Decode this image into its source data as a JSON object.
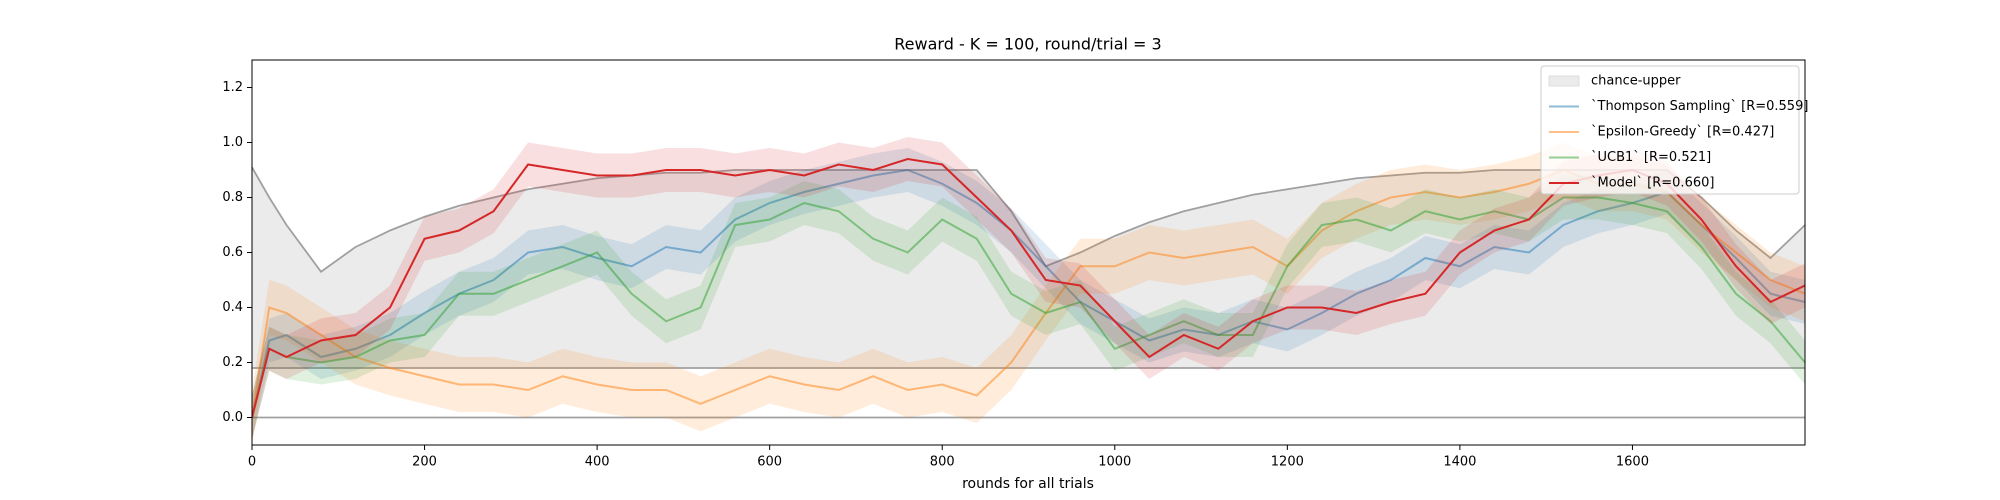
{
  "chart_data": {
    "type": "line",
    "title": "Reward - K = 100, round/trial = 3",
    "xlabel": "rounds for all trials",
    "xlim": [
      0,
      1800
    ],
    "ylim": [
      -0.1,
      1.3
    ],
    "xticks": [
      0,
      200,
      400,
      600,
      800,
      1000,
      1200,
      1400,
      1600
    ],
    "yticks": [
      {
        "value": 0,
        "label": "0.0"
      },
      {
        "value": 0.2,
        "label": "0.2"
      },
      {
        "value": 0.4,
        "label": "0.4"
      },
      {
        "value": 0.6,
        "label": "0.6"
      },
      {
        "value": 0.8,
        "label": "0.8"
      },
      {
        "value": 1.0,
        "label": "1.0"
      },
      {
        "value": 1.2,
        "label": "1.2"
      }
    ],
    "legend": "upper right",
    "hline": 0,
    "x": [
      0,
      20,
      40,
      80,
      120,
      160,
      200,
      240,
      280,
      320,
      360,
      400,
      440,
      480,
      520,
      560,
      600,
      640,
      680,
      720,
      760,
      800,
      840,
      880,
      920,
      960,
      1000,
      1040,
      1080,
      1120,
      1160,
      1200,
      1240,
      1280,
      1320,
      1360,
      1400,
      1440,
      1480,
      1520,
      1560,
      1600,
      1640,
      1680,
      1720,
      1760,
      1800
    ],
    "chance": {
      "name": "chance-upper",
      "color": "#ebebeb",
      "line_color": "#a0a0a0",
      "lower": 0.18,
      "upper": [
        0.91,
        0.8,
        0.7,
        0.53,
        0.62,
        0.68,
        0.73,
        0.77,
        0.8,
        0.83,
        0.85,
        0.87,
        0.88,
        0.89,
        0.89,
        0.9,
        0.9,
        0.9,
        0.9,
        0.9,
        0.9,
        0.9,
        0.9,
        0.75,
        0.55,
        0.6,
        0.66,
        0.71,
        0.75,
        0.78,
        0.81,
        0.83,
        0.85,
        0.87,
        0.88,
        0.89,
        0.89,
        0.9,
        0.9,
        0.9,
        0.9,
        0.9,
        0.9,
        0.8,
        0.68,
        0.58,
        0.7
      ]
    },
    "series": [
      {
        "name": "`Thompson Sampling` [R=0.559]",
        "color": "#1f77b4",
        "alpha": 0.5,
        "band": 0.08,
        "values": [
          0,
          0.28,
          0.3,
          0.22,
          0.25,
          0.3,
          0.38,
          0.45,
          0.5,
          0.6,
          0.62,
          0.58,
          0.55,
          0.62,
          0.6,
          0.72,
          0.78,
          0.82,
          0.85,
          0.88,
          0.9,
          0.85,
          0.78,
          0.68,
          0.55,
          0.42,
          0.35,
          0.28,
          0.32,
          0.3,
          0.35,
          0.32,
          0.38,
          0.45,
          0.5,
          0.58,
          0.55,
          0.62,
          0.6,
          0.7,
          0.75,
          0.78,
          0.82,
          0.7,
          0.58,
          0.45,
          0.42
        ]
      },
      {
        "name": "`Epsilon-Greedy` [R=0.427]",
        "color": "#ff7f0e",
        "alpha": 0.5,
        "band": 0.1,
        "values": [
          0,
          0.4,
          0.38,
          0.3,
          0.22,
          0.18,
          0.15,
          0.12,
          0.12,
          0.1,
          0.15,
          0.12,
          0.1,
          0.1,
          0.05,
          0.1,
          0.15,
          0.12,
          0.1,
          0.15,
          0.1,
          0.12,
          0.08,
          0.2,
          0.38,
          0.55,
          0.55,
          0.6,
          0.58,
          0.6,
          0.62,
          0.55,
          0.68,
          0.75,
          0.8,
          0.82,
          0.8,
          0.82,
          0.85,
          0.9,
          0.85,
          0.85,
          0.82,
          0.7,
          0.6,
          0.5,
          0.45
        ]
      },
      {
        "name": "`UCB1` [R=0.521]",
        "color": "#2ca02c",
        "alpha": 0.5,
        "band": 0.08,
        "values": [
          0,
          0.25,
          0.22,
          0.2,
          0.22,
          0.28,
          0.3,
          0.45,
          0.45,
          0.5,
          0.55,
          0.6,
          0.45,
          0.35,
          0.4,
          0.7,
          0.72,
          0.78,
          0.75,
          0.65,
          0.6,
          0.72,
          0.65,
          0.45,
          0.38,
          0.42,
          0.25,
          0.3,
          0.35,
          0.3,
          0.3,
          0.55,
          0.7,
          0.72,
          0.68,
          0.75,
          0.72,
          0.75,
          0.72,
          0.8,
          0.8,
          0.78,
          0.75,
          0.62,
          0.45,
          0.35,
          0.2
        ]
      },
      {
        "name": "`Model` [R=0.660]",
        "color": "#d62728",
        "alpha": 1,
        "band": 0.08,
        "values": [
          0,
          0.25,
          0.22,
          0.28,
          0.3,
          0.4,
          0.65,
          0.68,
          0.75,
          0.92,
          0.9,
          0.88,
          0.88,
          0.9,
          0.9,
          0.88,
          0.9,
          0.88,
          0.92,
          0.9,
          0.94,
          0.92,
          0.8,
          0.68,
          0.5,
          0.48,
          0.35,
          0.22,
          0.3,
          0.25,
          0.35,
          0.4,
          0.4,
          0.38,
          0.42,
          0.45,
          0.6,
          0.68,
          0.72,
          0.85,
          0.88,
          0.9,
          0.85,
          0.72,
          0.55,
          0.42,
          0.48
        ]
      }
    ]
  }
}
